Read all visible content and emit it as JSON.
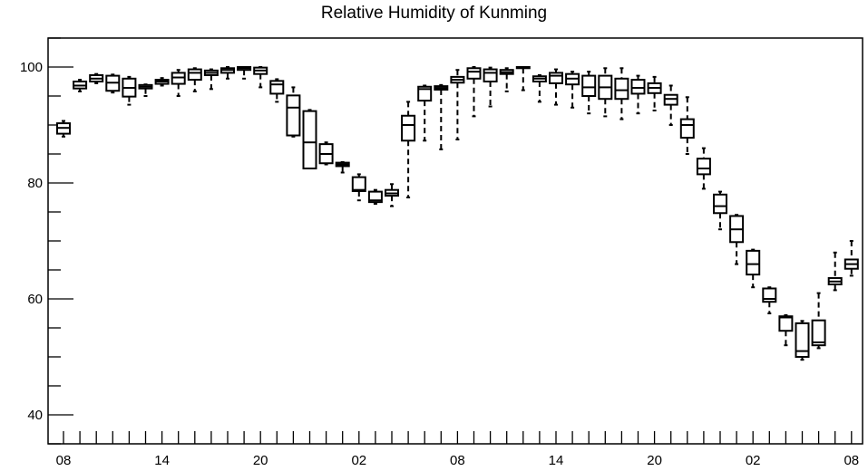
{
  "chart_data": {
    "type": "box",
    "title": "Relative Humidity of Kunming",
    "xlabel": "",
    "ylabel": "",
    "ylim": [
      35,
      105
    ],
    "yticks_major": [
      40,
      60,
      80,
      100
    ],
    "yticks_minor_step": 5,
    "xtick_labels": [
      "08",
      "14",
      "20",
      "02",
      "08",
      "14",
      "20",
      "02",
      "08"
    ],
    "xtick_label_positions": [
      0,
      6,
      12,
      18,
      24,
      30,
      36,
      42,
      48
    ],
    "grid": false,
    "series": [
      {
        "x": 0,
        "min": 88,
        "q1": 88.5,
        "median": 89.5,
        "q3": 90.3,
        "max": 90.7
      },
      {
        "x": 1,
        "min": 95.8,
        "q1": 96.3,
        "median": 96.8,
        "q3": 97.5,
        "max": 97.8
      },
      {
        "x": 2,
        "min": 97.2,
        "q1": 97.5,
        "median": 98.0,
        "q3": 98.6,
        "max": 98.8
      },
      {
        "x": 3,
        "min": 95.6,
        "q1": 95.9,
        "median": 97.3,
        "q3": 98.5,
        "max": 98.7
      },
      {
        "x": 4,
        "min": 93.5,
        "q1": 94.9,
        "median": 96.4,
        "q3": 98.0,
        "max": 98.3
      },
      {
        "x": 5,
        "min": 95.0,
        "q1": 96.3,
        "median": 96.6,
        "q3": 96.9,
        "max": 97.0
      },
      {
        "x": 6,
        "min": 96.8,
        "q1": 97.1,
        "median": 97.5,
        "q3": 97.8,
        "max": 98.1
      },
      {
        "x": 7,
        "min": 95.0,
        "q1": 97.1,
        "median": 98.2,
        "q3": 99.0,
        "max": 99.5
      },
      {
        "x": 8,
        "min": 95.8,
        "q1": 97.8,
        "median": 99.0,
        "q3": 99.6,
        "max": 99.8
      },
      {
        "x": 9,
        "min": 96.2,
        "q1": 98.6,
        "median": 99.0,
        "q3": 99.4,
        "max": 99.6
      },
      {
        "x": 10,
        "min": 98.0,
        "q1": 99.0,
        "median": 99.5,
        "q3": 99.8,
        "max": 100
      },
      {
        "x": 11,
        "min": 98.0,
        "q1": 99.5,
        "median": 99.8,
        "q3": 100,
        "max": 100
      },
      {
        "x": 12,
        "min": 96.5,
        "q1": 98.8,
        "median": 99.4,
        "q3": 99.9,
        "max": 100
      },
      {
        "x": 13,
        "min": 94.0,
        "q1": 95.4,
        "median": 97.0,
        "q3": 97.6,
        "max": 97.9
      },
      {
        "x": 14,
        "min": 88.0,
        "q1": 88.2,
        "median": 93.0,
        "q3": 95.1,
        "max": 96.5
      },
      {
        "x": 15,
        "min": 82.5,
        "q1": 82.5,
        "median": 87.0,
        "q3": 92.4,
        "max": 92.6
      },
      {
        "x": 16,
        "min": 83.2,
        "q1": 83.4,
        "median": 85.0,
        "q3": 86.7,
        "max": 87.0
      },
      {
        "x": 17,
        "min": 81.8,
        "q1": 82.9,
        "median": 83.2,
        "q3": 83.5,
        "max": 83.6
      },
      {
        "x": 18,
        "min": 77.0,
        "q1": 78.6,
        "median": 78.8,
        "q3": 81.0,
        "max": 81.5
      },
      {
        "x": 19,
        "min": 76.4,
        "q1": 76.7,
        "median": 77.0,
        "q3": 78.5,
        "max": 78.8
      },
      {
        "x": 20,
        "min": 76.0,
        "q1": 77.8,
        "median": 78.2,
        "q3": 78.8,
        "max": 79.8
      },
      {
        "x": 21,
        "min": 77.5,
        "q1": 87.3,
        "median": 90.0,
        "q3": 91.6,
        "max": 94.0
      },
      {
        "x": 22,
        "min": 87.3,
        "q1": 94.2,
        "median": 96.2,
        "q3": 96.6,
        "max": 96.8
      },
      {
        "x": 23,
        "min": 85.8,
        "q1": 96.1,
        "median": 96.4,
        "q3": 96.7,
        "max": 96.9
      },
      {
        "x": 24,
        "min": 87.5,
        "q1": 97.3,
        "median": 97.8,
        "q3": 98.3,
        "max": 99.5
      },
      {
        "x": 25,
        "min": 91.5,
        "q1": 98.0,
        "median": 99.2,
        "q3": 99.8,
        "max": 100
      },
      {
        "x": 26,
        "min": 93.2,
        "q1": 97.5,
        "median": 99.0,
        "q3": 99.6,
        "max": 99.9
      },
      {
        "x": 27,
        "min": 95.8,
        "q1": 98.8,
        "median": 99.1,
        "q3": 99.5,
        "max": 99.8
      },
      {
        "x": 28,
        "min": 96.0,
        "q1": 99.8,
        "median": 99.9,
        "q3": 100,
        "max": 100
      },
      {
        "x": 29,
        "min": 94.0,
        "q1": 97.5,
        "median": 98.0,
        "q3": 98.4,
        "max": 98.6
      },
      {
        "x": 30,
        "min": 93.5,
        "q1": 97.2,
        "median": 98.5,
        "q3": 99.0,
        "max": 99.6
      },
      {
        "x": 31,
        "min": 93.0,
        "q1": 97.0,
        "median": 98.0,
        "q3": 98.8,
        "max": 99.2
      },
      {
        "x": 32,
        "min": 92.0,
        "q1": 95.0,
        "median": 96.5,
        "q3": 98.5,
        "max": 99.2
      },
      {
        "x": 33,
        "min": 91.5,
        "q1": 94.5,
        "median": 96.5,
        "q3": 98.5,
        "max": 99.8
      },
      {
        "x": 34,
        "min": 91.0,
        "q1": 94.5,
        "median": 96.0,
        "q3": 98.0,
        "max": 99.8
      },
      {
        "x": 35,
        "min": 92.0,
        "q1": 95.4,
        "median": 96.4,
        "q3": 97.8,
        "max": 98.5
      },
      {
        "x": 36,
        "min": 92.5,
        "q1": 95.5,
        "median": 96.4,
        "q3": 97.2,
        "max": 98.3
      },
      {
        "x": 37,
        "min": 90.0,
        "q1": 93.5,
        "median": 94.5,
        "q3": 95.2,
        "max": 96.8
      },
      {
        "x": 38,
        "min": 85.0,
        "q1": 87.8,
        "median": 90.0,
        "q3": 91.0,
        "max": 94.8
      },
      {
        "x": 39,
        "min": 79.0,
        "q1": 81.5,
        "median": 82.5,
        "q3": 84.2,
        "max": 86.0
      },
      {
        "x": 40,
        "min": 72.0,
        "q1": 74.8,
        "median": 76.0,
        "q3": 78.0,
        "max": 78.5
      },
      {
        "x": 41,
        "min": 66.0,
        "q1": 69.8,
        "median": 72.0,
        "q3": 74.3,
        "max": 74.5
      },
      {
        "x": 42,
        "min": 62.0,
        "q1": 64.2,
        "median": 66.0,
        "q3": 68.3,
        "max": 68.5
      },
      {
        "x": 43,
        "min": 57.5,
        "q1": 59.5,
        "median": 60.0,
        "q3": 61.8,
        "max": 62.0
      },
      {
        "x": 44,
        "min": 52.0,
        "q1": 54.5,
        "median": 56.8,
        "q3": 57.0,
        "max": 57.2
      },
      {
        "x": 45,
        "min": 49.5,
        "q1": 50.0,
        "median": 51.0,
        "q3": 55.8,
        "max": 56.2
      },
      {
        "x": 46,
        "min": 51.5,
        "q1": 52.0,
        "median": 52.5,
        "q3": 56.3,
        "max": 61.0
      },
      {
        "x": 47,
        "min": 61.5,
        "q1": 62.5,
        "median": 63.0,
        "q3": 63.6,
        "max": 68.0
      },
      {
        "x": 48,
        "min": 64.0,
        "q1": 65.2,
        "median": 66.0,
        "q3": 66.8,
        "max": 70.0
      }
    ]
  }
}
